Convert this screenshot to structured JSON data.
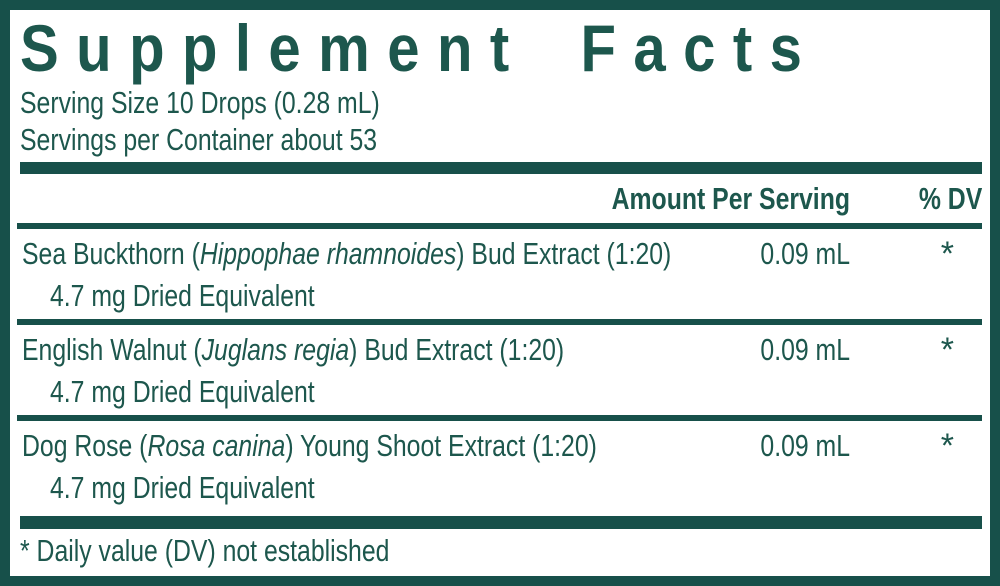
{
  "panel": {
    "title": "Supplement Facts",
    "serving_size": "Serving Size 10 Drops (0.28 mL)",
    "servings_per_container": "Servings per Container about 53",
    "header": {
      "amount": "Amount Per Serving",
      "dv": "% DV"
    },
    "rows": [
      {
        "name_prefix": "Sea Buckthorn (",
        "latin": "Hippophae rhamnoides",
        "name_suffix": ") Bud Extract (1:20)",
        "sub": "4.7 mg Dried Equivalent",
        "amount": "0.09 mL",
        "dv": "*"
      },
      {
        "name_prefix": "English Walnut (",
        "latin": "Juglans regia",
        "name_suffix": ") Bud Extract (1:20)",
        "sub": "4.7 mg Dried Equivalent",
        "amount": "0.09 mL",
        "dv": "*"
      },
      {
        "name_prefix": "Dog Rose (",
        "latin": "Rosa canina",
        "name_suffix": ") Young Shoot Extract (1:20)",
        "sub": "4.7 mg Dried Equivalent",
        "amount": "0.09 mL",
        "dv": "*"
      }
    ],
    "footnote": "* Daily value (DV) not established",
    "colors": {
      "teal": "#17504a",
      "ink": "#1d574d",
      "background": "#ffffff"
    }
  }
}
